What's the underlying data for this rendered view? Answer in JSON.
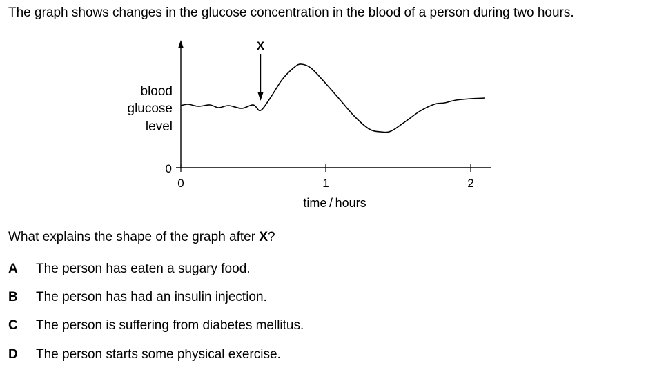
{
  "intro": "The graph shows changes in the glucose concentration in the blood of a person during two hours.",
  "chart_data": {
    "type": "line",
    "ylabel_lines": [
      "blood",
      "glucose",
      "level"
    ],
    "y_zero_label": "0",
    "xlabel": "time / hours",
    "x_ticks": [
      "0",
      "1",
      "2"
    ],
    "xlim": [
      0,
      2
    ],
    "marker_label": "X",
    "marker_x": 0.55,
    "series": [
      {
        "x": [
          0.0,
          0.05,
          0.12,
          0.2,
          0.26,
          0.33,
          0.42,
          0.5,
          0.55,
          0.62,
          0.7,
          0.78,
          0.83,
          0.9,
          1.0,
          1.1,
          1.2,
          1.3,
          1.38,
          1.45,
          1.55,
          1.65,
          1.75,
          1.82,
          1.9,
          2.0,
          2.1
        ],
        "y": [
          2.0,
          2.1,
          1.95,
          2.05,
          1.85,
          2.0,
          1.8,
          2.05,
          1.65,
          2.6,
          3.9,
          4.75,
          5.0,
          4.7,
          3.6,
          2.4,
          1.2,
          0.3,
          0.1,
          0.15,
          0.85,
          1.6,
          2.1,
          2.2,
          2.4,
          2.5,
          2.55
        ]
      }
    ]
  },
  "question": {
    "text": "What explains the shape of the graph after ",
    "x_mark": "X",
    "end": "?"
  },
  "options": [
    {
      "letter": "A",
      "text": "The person has eaten a sugary food."
    },
    {
      "letter": "B",
      "text": "The person has had an insulin injection."
    },
    {
      "letter": "C",
      "text": "The person is suffering from diabetes mellitus."
    },
    {
      "letter": "D",
      "text": "The person starts some physical exercise."
    }
  ]
}
